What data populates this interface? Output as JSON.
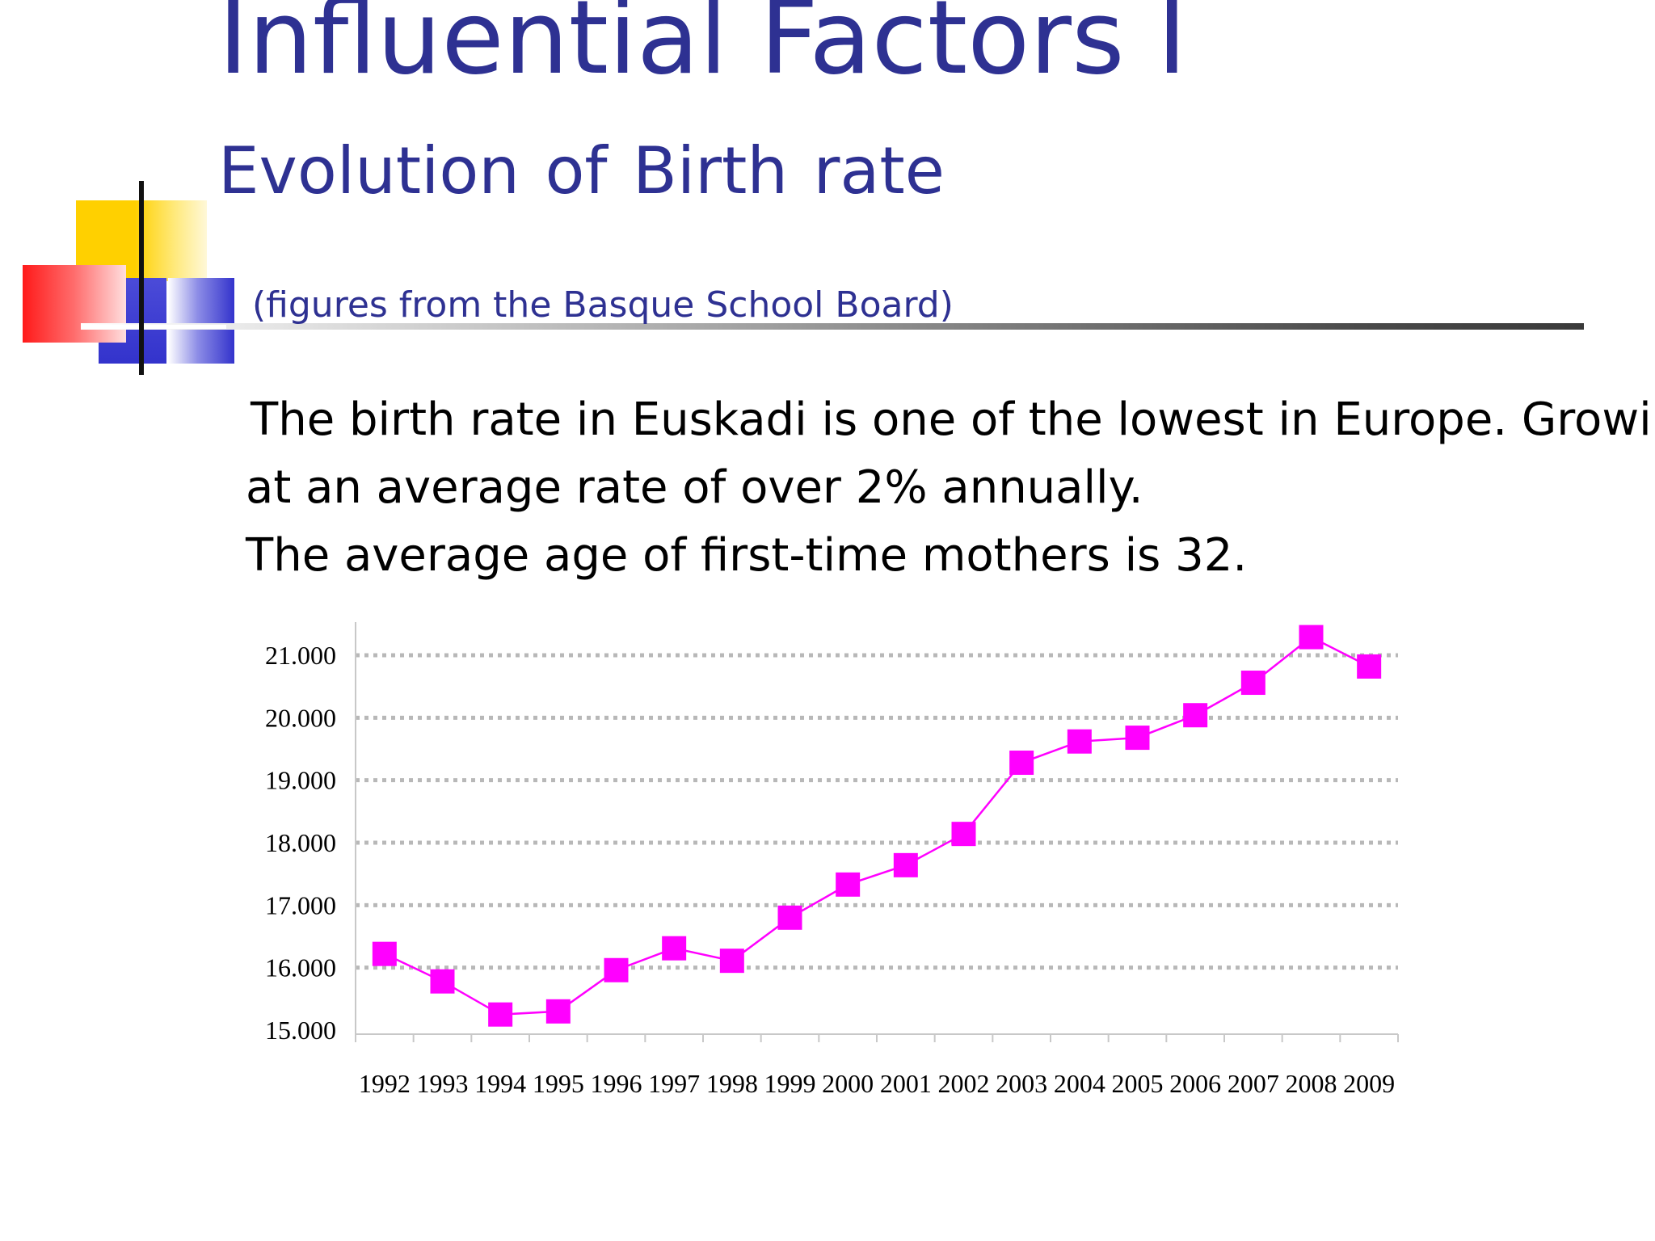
{
  "slide": {
    "title": "Influential Factors I",
    "subtitle": "Evolution  of Birth rate",
    "source_note": "(figures from the Basque School Board)",
    "body_lines": [
      "The birth rate in Euskadi is one of the lowest in Europe. Growing",
      "at an average rate of over 2% annually.",
      "The average age of first-time mothers is 32."
    ]
  },
  "chart_data": {
    "type": "line",
    "title": "",
    "xlabel": "",
    "ylabel": "",
    "categories": [
      "1992",
      "1993",
      "1994",
      "1995",
      "1996",
      "1997",
      "1998",
      "1999",
      "2000",
      "2001",
      "2002",
      "2003",
      "2004",
      "2005",
      "2006",
      "2007",
      "2008",
      "2009"
    ],
    "series": [
      {
        "values": [
          16220,
          15780,
          15250,
          15300,
          15960,
          16310,
          16110,
          16800,
          17330,
          17640,
          18140,
          19280,
          19620,
          19680,
          20040,
          20560,
          21290,
          20820
        ]
      }
    ],
    "ylim": [
      15000,
      21000
    ],
    "yticks": [
      15000,
      16000,
      17000,
      18000,
      19000,
      20000,
      21000
    ],
    "ytick_labels": [
      "15.000",
      "16.000",
      "17.000",
      "18.000",
      "19.000",
      "20.000",
      "21.000"
    ],
    "grid": true,
    "legend": "none",
    "colors": {
      "series": "#ff00ff",
      "grid": "#b8b8b8",
      "axis": "#c8c8c8",
      "title": "#2e3192"
    }
  }
}
